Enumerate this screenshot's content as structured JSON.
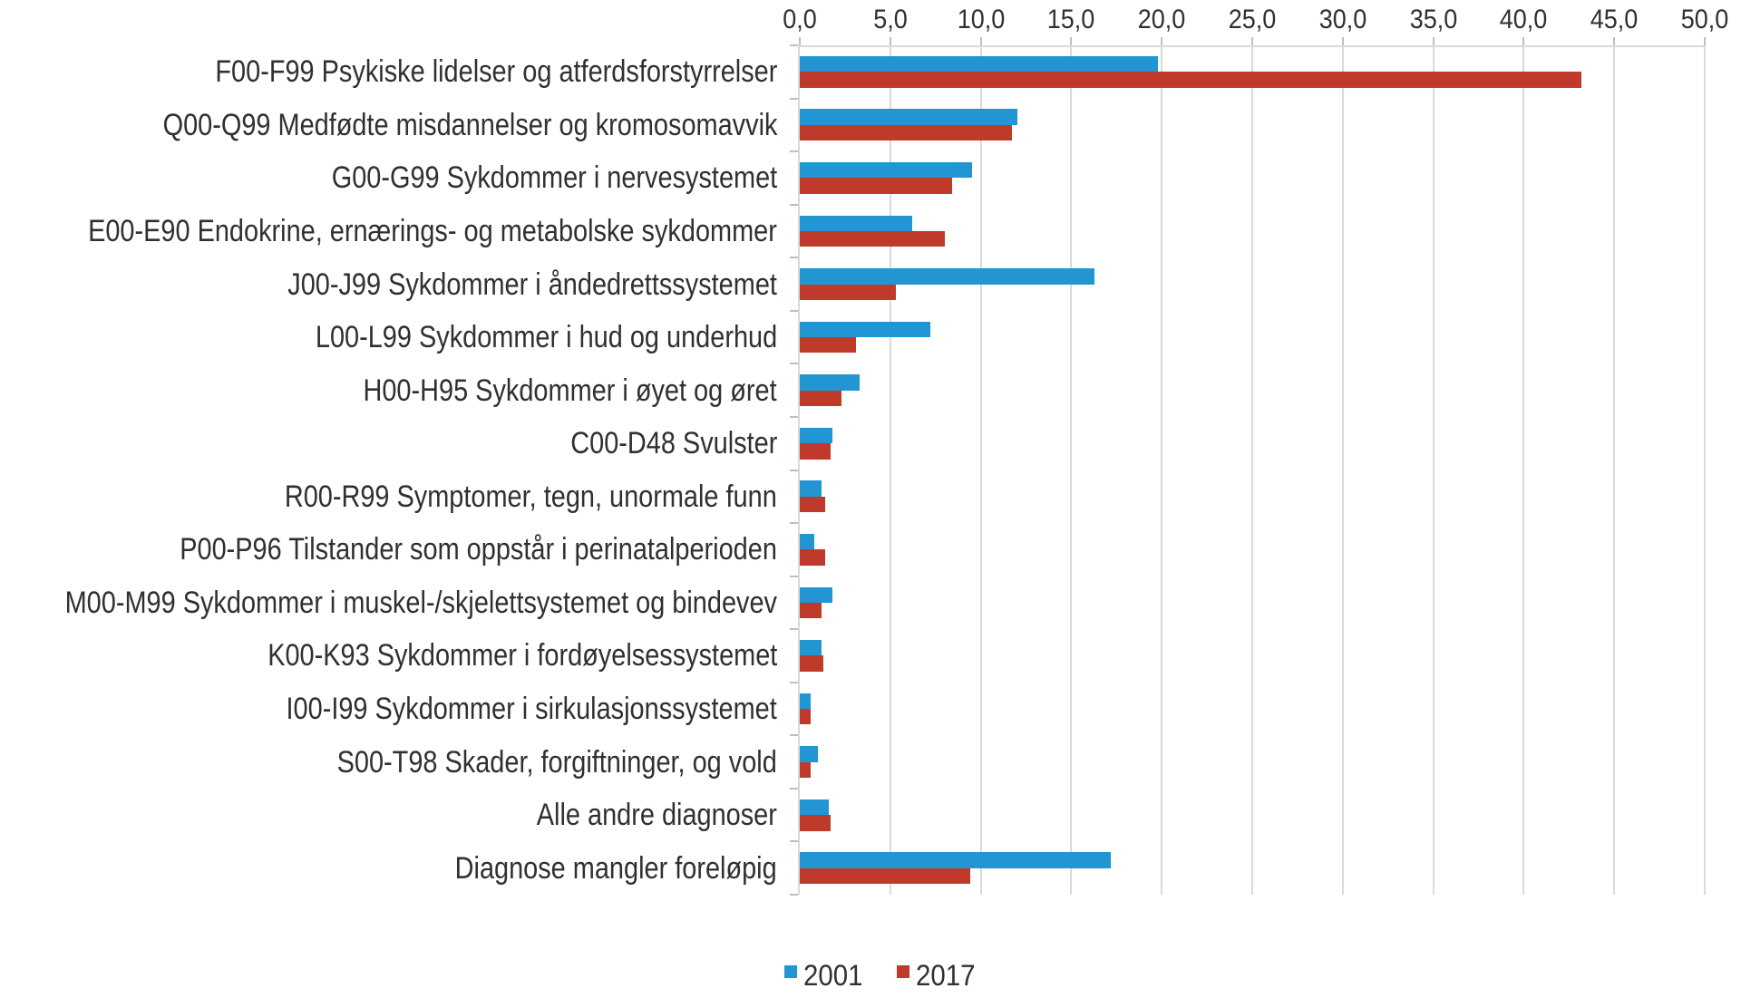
{
  "chart": {
    "background_color": "#ffffff",
    "text_color": "#303030",
    "grid_color": "#dadada",
    "tick_color": "#bfbfbf",
    "axis_line_color": "#d9d9d9",
    "accent_blue": "#2196d3",
    "accent_red": "#c03a2c"
  },
  "chart_data": {
    "type": "bar",
    "orientation": "horizontal",
    "title": "",
    "xlabel": "",
    "ylabel": "",
    "grid": "vertical",
    "x_axis": {
      "position": "top",
      "min": 0,
      "max": 50,
      "tick_step": 5,
      "tick_labels": [
        "0,0",
        "5,0",
        "10,0",
        "15,0",
        "20,0",
        "25,0",
        "30,0",
        "35,0",
        "40,0",
        "45,0",
        "50,0"
      ]
    },
    "categories": [
      "F00-F99 Psykiske lidelser og atferdsforstyrrelser",
      "Q00-Q99 Medfødte misdannelser og kromosomavvik",
      "G00-G99 Sykdommer i nervesystemet",
      "E00-E90 Endokrine, ernærings- og metabolske sykdommer",
      "J00-J99 Sykdommer i åndedrettssystemet",
      "L00-L99 Sykdommer i hud og underhud",
      "H00-H95 Sykdommer i øyet og øret",
      "C00-D48 Svulster",
      "R00-R99 Symptomer, tegn, unormale funn",
      "P00-P96 Tilstander som oppstår i perinatalperioden",
      "M00-M99 Sykdommer i muskel-/skjelettsystemet og bindevev",
      "K00-K93 Sykdommer i fordøyelsessystemet",
      "I00-I99 Sykdommer i sirkulasjonssystemet",
      "S00-T98 Skader, forgiftninger, og vold",
      "Alle andre diagnoser",
      "Diagnose mangler foreløpig"
    ],
    "series": [
      {
        "name": "2001",
        "color": "#2196d3",
        "values": [
          19.8,
          12.0,
          9.5,
          6.2,
          16.3,
          7.2,
          3.3,
          1.8,
          1.2,
          0.8,
          1.8,
          1.2,
          0.6,
          1.0,
          1.6,
          17.2
        ]
      },
      {
        "name": "2017",
        "color": "#c03a2c",
        "values": [
          43.2,
          11.7,
          8.4,
          8.0,
          5.3,
          3.1,
          2.3,
          1.7,
          1.4,
          1.4,
          1.2,
          1.3,
          0.6,
          0.6,
          1.7,
          9.4
        ]
      }
    ],
    "legend": {
      "position": "bottom-center",
      "entries": [
        "2001",
        "2017"
      ]
    }
  }
}
